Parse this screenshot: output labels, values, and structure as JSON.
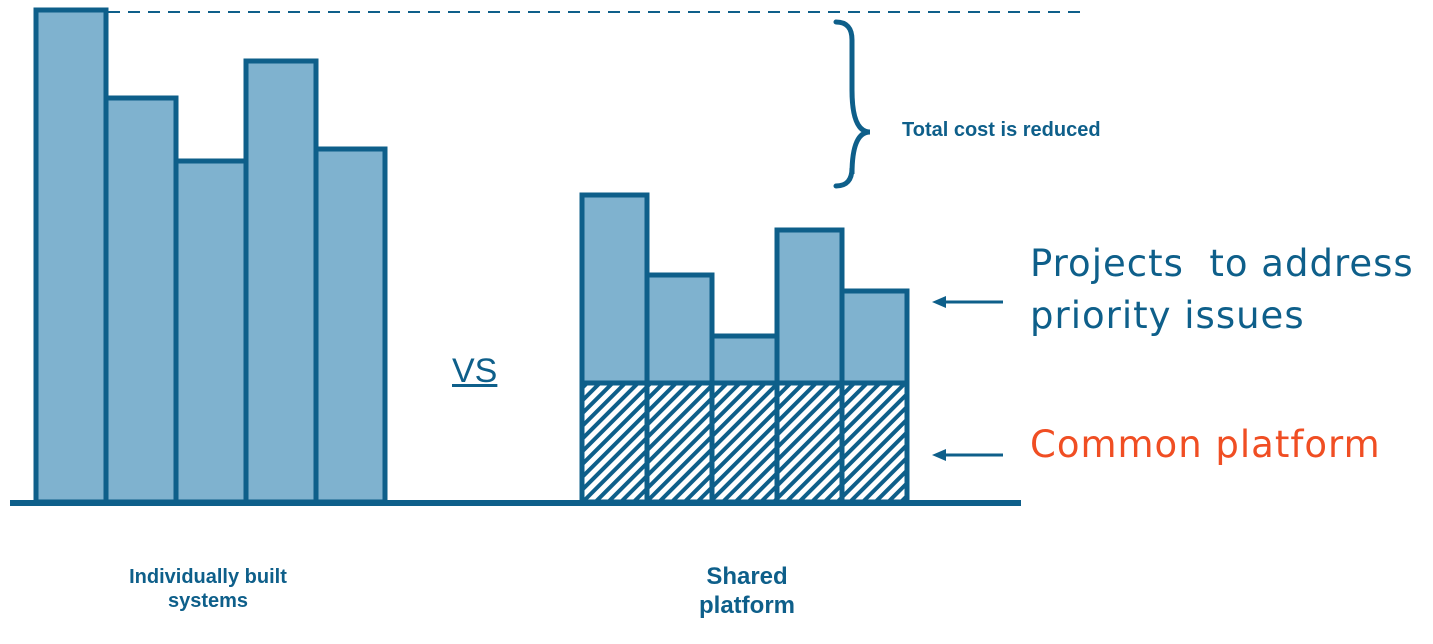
{
  "diagram": {
    "brace_label": "Total cost is reduced",
    "vs_label": "VS",
    "projects_label_line1": "Projects  to address",
    "projects_label_line2": "priority issues",
    "common_label": "Common platform",
    "left_caption_line1": "Individually built",
    "left_caption_line2": "systems",
    "right_caption_line1": "Shared",
    "right_caption_line2": "platform",
    "colors": {
      "bar_fill": "#7fb2cf",
      "stroke": "#0e5f8a",
      "accent": "#f04e23"
    }
  }
}
